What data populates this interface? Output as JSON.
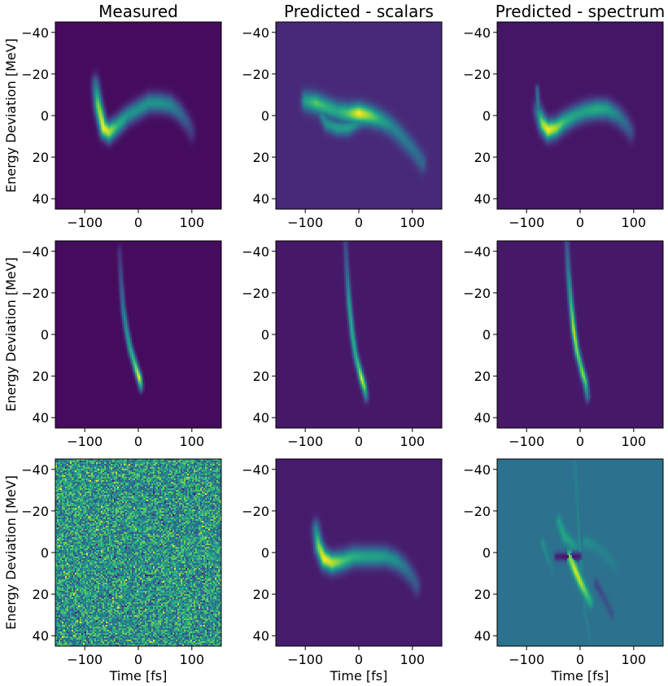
{
  "chart_data": {
    "type": "heatmap",
    "layout": "3x3 grid of panels",
    "colormap": "viridis",
    "xlabel": "Time [fs]",
    "ylabel": "Energy Deviation [MeV]",
    "xlim": [
      -155,
      155
    ],
    "ylim": [
      45,
      -45
    ],
    "y_inverted": true,
    "xticks": [
      -100,
      0,
      100
    ],
    "yticks": [
      -40,
      -20,
      0,
      20,
      40
    ],
    "xtick_labels": [
      "−100",
      "0",
      "100"
    ],
    "ytick_labels": [
      "−40",
      "−20",
      "0",
      "20",
      "40"
    ],
    "column_titles": [
      "Measured",
      "Predicted - scalars",
      "Predicted - spectrum"
    ],
    "grid": false,
    "panels": [
      {
        "row": 0,
        "col": 0,
        "title": "Measured",
        "background": 0.03,
        "features": [
          {
            "kind": "cubic-curve",
            "points": [
              [
                -80,
                -15
              ],
              [
                -75,
                -5
              ],
              [
                -65,
                6
              ],
              [
                -55,
                8
              ],
              [
                -40,
                5
              ],
              [
                -20,
                0
              ],
              [
                0,
                -3
              ],
              [
                20,
                -6
              ],
              [
                40,
                -6
              ],
              [
                60,
                -5
              ],
              [
                75,
                -2
              ],
              [
                90,
                3
              ],
              [
                100,
                8
              ]
            ],
            "width": 4.5,
            "intensity": [
              0.35,
              0.8,
              1.0,
              0.9,
              0.65,
              0.5,
              0.5,
              0.5,
              0.5,
              0.45,
              0.35,
              0.25,
              0.15
            ]
          }
        ]
      },
      {
        "row": 0,
        "col": 1,
        "title": "Predicted - scalars",
        "background": 0.12,
        "features": [
          {
            "kind": "cubic-curve",
            "points": [
              [
                -100,
                -7
              ],
              [
                -80,
                -6
              ],
              [
                -60,
                -4
              ],
              [
                -40,
                -2
              ],
              [
                -20,
                -1
              ],
              [
                0,
                -1
              ],
              [
                20,
                0
              ],
              [
                40,
                2
              ],
              [
                60,
                5
              ],
              [
                80,
                10
              ],
              [
                100,
                16
              ],
              [
                120,
                23
              ]
            ],
            "width": 4.5,
            "intensity": [
              0.5,
              0.7,
              0.6,
              0.55,
              0.7,
              1.0,
              0.8,
              0.55,
              0.4,
              0.35,
              0.3,
              0.25
            ]
          },
          {
            "kind": "cubic-curve",
            "points": [
              [
                -80,
                -6
              ],
              [
                -60,
                4
              ],
              [
                -40,
                6
              ],
              [
                -20,
                6
              ],
              [
                0,
                3
              ],
              [
                20,
                2
              ],
              [
                40,
                4
              ],
              [
                60,
                8
              ],
              [
                80,
                13
              ],
              [
                100,
                18
              ]
            ],
            "width": 3.5,
            "intensity": [
              0.3,
              0.45,
              0.5,
              0.5,
              0.4,
              0.3,
              0.25,
              0.2,
              0.18,
              0.15
            ]
          }
        ]
      },
      {
        "row": 0,
        "col": 2,
        "title": "Predicted - spectrum",
        "background": 0.06,
        "features": [
          {
            "kind": "cubic-curve",
            "points": [
              [
                -80,
                -3
              ],
              [
                -70,
                4
              ],
              [
                -60,
                7
              ],
              [
                -45,
                6
              ],
              [
                -30,
                3
              ],
              [
                -10,
                0
              ],
              [
                10,
                -2
              ],
              [
                30,
                -3
              ],
              [
                50,
                -3
              ],
              [
                70,
                0
              ],
              [
                85,
                4
              ],
              [
                95,
                8
              ]
            ],
            "width": 4.5,
            "intensity": [
              0.3,
              0.85,
              1.0,
              0.85,
              0.65,
              0.55,
              0.55,
              0.6,
              0.55,
              0.4,
              0.3,
              0.2
            ]
          },
          {
            "kind": "cubic-curve",
            "points": [
              [
                -80,
                -12
              ],
              [
                -78,
                -4
              ]
            ],
            "width": 2.5,
            "intensity": [
              0.3,
              0.4
            ]
          }
        ]
      },
      {
        "row": 1,
        "col": 0,
        "title": "",
        "background": 0.03,
        "features": [
          {
            "kind": "cubic-curve",
            "points": [
              [
                -35,
                -40
              ],
              [
                -32,
                -25
              ],
              [
                -28,
                -12
              ],
              [
                -22,
                -2
              ],
              [
                -15,
                7
              ],
              [
                -8,
                13
              ],
              [
                -2,
                18
              ],
              [
                2,
                21
              ],
              [
                5,
                25
              ]
            ],
            "width": 2.8,
            "intensity": [
              0.12,
              0.25,
              0.4,
              0.5,
              0.6,
              0.7,
              0.9,
              1.0,
              0.5
            ]
          }
        ]
      },
      {
        "row": 1,
        "col": 1,
        "title": "",
        "background": 0.07,
        "features": [
          {
            "kind": "cubic-curve",
            "points": [
              [
                -25,
                -45
              ],
              [
                -22,
                -30
              ],
              [
                -18,
                -15
              ],
              [
                -12,
                0
              ],
              [
                -6,
                10
              ],
              [
                0,
                16
              ],
              [
                5,
                21
              ],
              [
                10,
                25
              ],
              [
                14,
                30
              ]
            ],
            "width": 2.8,
            "intensity": [
              0.15,
              0.3,
              0.55,
              0.6,
              0.6,
              0.7,
              0.95,
              0.8,
              0.35
            ]
          }
        ]
      },
      {
        "row": 1,
        "col": 2,
        "title": "",
        "background": 0.07,
        "features": [
          {
            "kind": "cubic-curve",
            "points": [
              [
                -25,
                -45
              ],
              [
                -22,
                -30
              ],
              [
                -17,
                -15
              ],
              [
                -12,
                -2
              ],
              [
                -6,
                8
              ],
              [
                0,
                14
              ],
              [
                5,
                19
              ],
              [
                10,
                23
              ],
              [
                14,
                30
              ]
            ],
            "width": 2.8,
            "intensity": [
              0.2,
              0.4,
              0.65,
              0.9,
              0.8,
              0.7,
              0.85,
              0.7,
              0.35
            ]
          }
        ]
      },
      {
        "row": 2,
        "col": 0,
        "title": "Measured",
        "background": 0.55,
        "noise": true,
        "features": []
      },
      {
        "row": 2,
        "col": 1,
        "title": "",
        "background": 0.08,
        "features": [
          {
            "kind": "cubic-curve",
            "points": [
              [
                -80,
                -11
              ],
              [
                -75,
                -3
              ],
              [
                -65,
                3
              ],
              [
                -50,
                5
              ],
              [
                -30,
                4
              ],
              [
                -10,
                2
              ],
              [
                10,
                2
              ],
              [
                30,
                2
              ],
              [
                50,
                2
              ],
              [
                70,
                4
              ],
              [
                85,
                7
              ],
              [
                100,
                12
              ],
              [
                108,
                16
              ]
            ],
            "width": 4.5,
            "intensity": [
              0.4,
              0.8,
              1.0,
              0.9,
              0.7,
              0.6,
              0.55,
              0.55,
              0.5,
              0.45,
              0.35,
              0.25,
              0.2
            ]
          }
        ]
      },
      {
        "row": 2,
        "col": 2,
        "title": "",
        "background": 0.38,
        "features": [
          {
            "kind": "cubic-curve",
            "points": [
              [
                -20,
                2
              ],
              [
                -10,
                8
              ],
              [
                0,
                14
              ],
              [
                10,
                19
              ],
              [
                20,
                24
              ]
            ],
            "width": 3,
            "intensity": [
              0.8,
              0.95,
              0.9,
              0.75,
              0.6
            ]
          },
          {
            "kind": "cubic-curve",
            "points": [
              [
                -40,
                -15
              ],
              [
                -30,
                -8
              ],
              [
                -15,
                -4
              ],
              [
                -5,
                -3
              ]
            ],
            "width": 3,
            "intensity": [
              0.55,
              0.6,
              0.55,
              0.45
            ]
          },
          {
            "kind": "cubic-curve",
            "points": [
              [
                -45,
                2
              ],
              [
                -30,
                2
              ],
              [
                -15,
                2
              ],
              [
                0,
                2
              ]
            ],
            "width": 2.2,
            "intensity": [
              0.1,
              0.05,
              0.05,
              0.1
            ]
          },
          {
            "kind": "cubic-curve",
            "points": [
              [
                10,
                -5
              ],
              [
                30,
                -3
              ],
              [
                50,
                2
              ],
              [
                70,
                8
              ]
            ],
            "width": 3,
            "intensity": [
              0.5,
              0.45,
              0.45,
              0.4
            ]
          },
          {
            "kind": "cubic-curve",
            "points": [
              [
                -70,
                -5
              ],
              [
                -60,
                3
              ],
              [
                -50,
                10
              ]
            ],
            "width": 2.2,
            "intensity": [
              0.5,
              0.45,
              0.4
            ]
          },
          {
            "kind": "cubic-curve",
            "points": [
              [
                30,
                15
              ],
              [
                45,
                22
              ],
              [
                60,
                30
              ]
            ],
            "width": 2.5,
            "intensity": [
              0.2,
              0.25,
              0.25
            ]
          },
          {
            "kind": "cubic-curve",
            "points": [
              [
                -10,
                -45
              ],
              [
                -5,
                -20
              ],
              [
                0,
                0
              ],
              [
                10,
                30
              ],
              [
                20,
                45
              ]
            ],
            "width": 1.5,
            "intensity": [
              0.45,
              0.45,
              0.5,
              0.45,
              0.4
            ]
          }
        ]
      }
    ]
  }
}
